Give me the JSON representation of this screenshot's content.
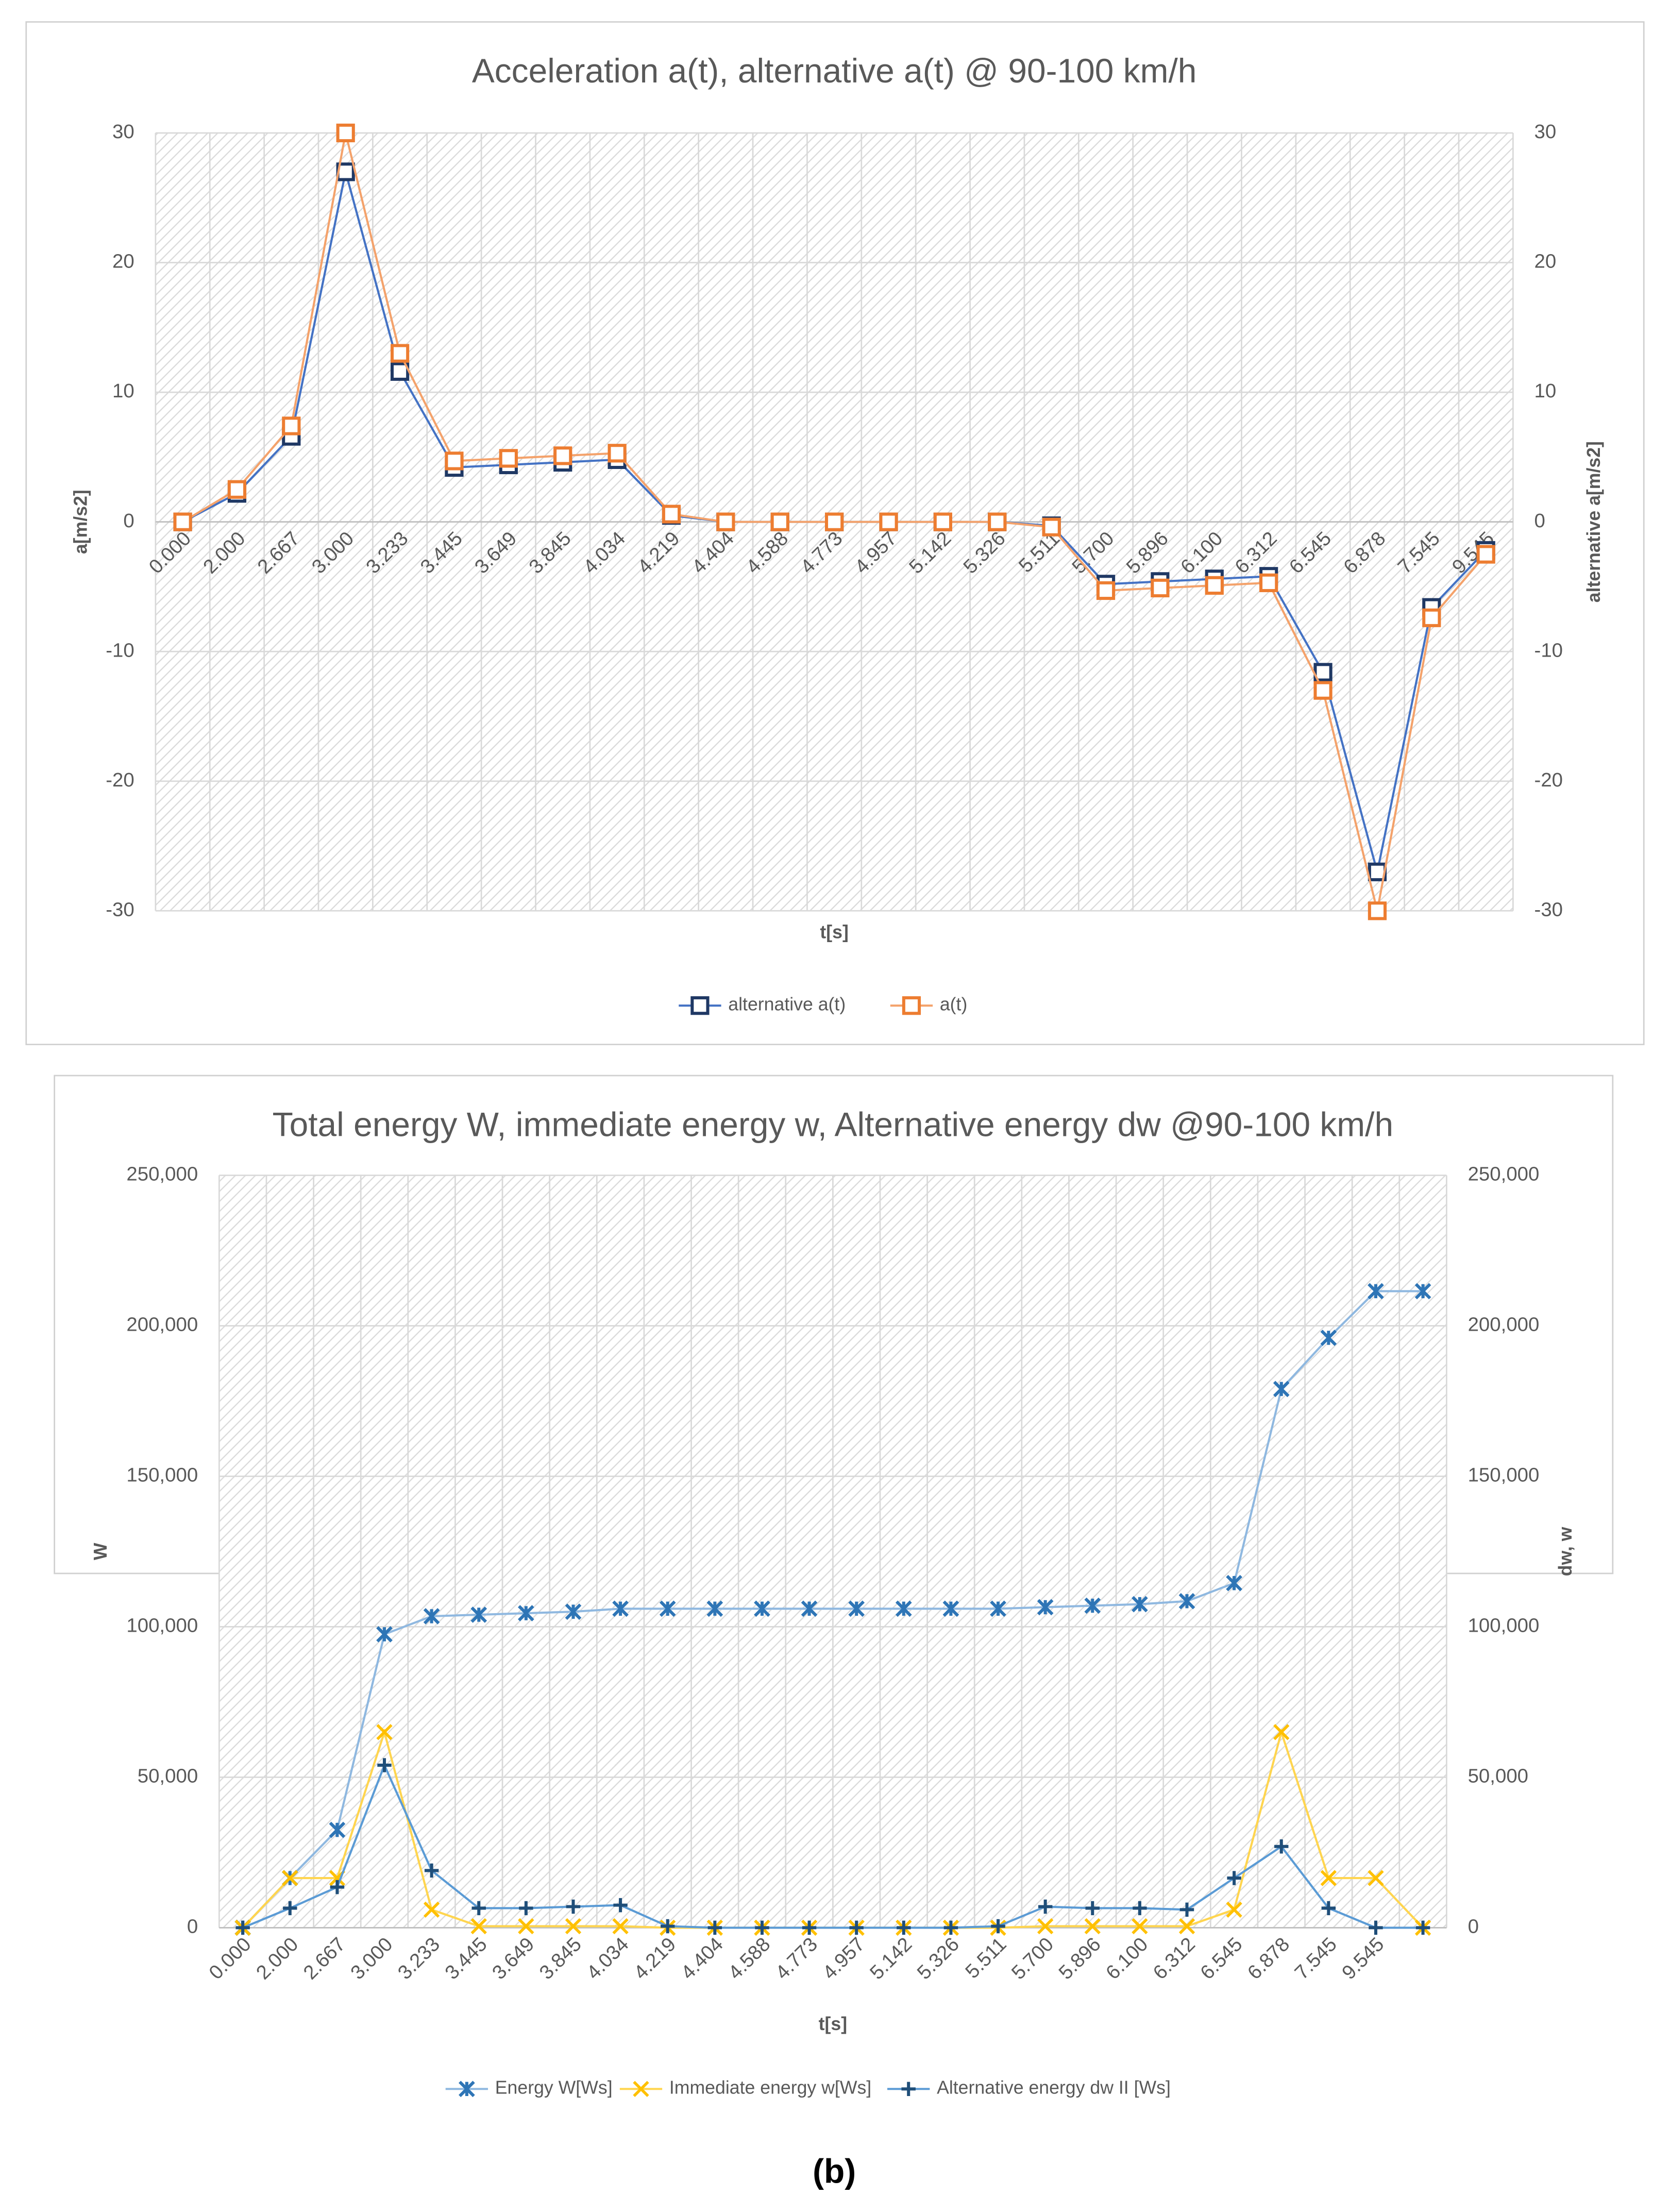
{
  "chart_data": [
    {
      "type": "line",
      "title": "Acceleration a(t), alternative  a(t) @ 90-100 km/h",
      "x_label": "t[s]",
      "y_label": "a[m/s2]",
      "y2_label": "alternative a[m/s2]",
      "categories": [
        "0.000",
        "2.000",
        "2.667",
        "3.000",
        "3.233",
        "3.445",
        "3.649",
        "3.845",
        "4.034",
        "4.219",
        "4.404",
        "4.588",
        "4.773",
        "4.957",
        "5.142",
        "5.326",
        "5.511",
        "5.700",
        "5.896",
        "6.100",
        "6.312",
        "6.545",
        "6.878",
        "7.545",
        "9.545"
      ],
      "series": [
        {
          "name": "alternative a(t)",
          "color": "#1f3864",
          "line_color": "#4472c4",
          "marker": "square",
          "values": [
            0,
            2.2,
            6.6,
            27,
            11.6,
            4.2,
            4.4,
            4.6,
            4.8,
            0.5,
            0,
            0,
            0,
            0,
            0,
            0,
            -0.3,
            -4.8,
            -4.6,
            -4.4,
            -4.2,
            -11.6,
            -27,
            -6.6,
            -2.2
          ]
        },
        {
          "name": "a(t)",
          "color": "#ed7d31",
          "line_color": "#f4a26b",
          "marker": "square",
          "axis": "y2",
          "values": [
            0,
            2.5,
            7.4,
            30,
            13,
            4.7,
            4.9,
            5.1,
            5.3,
            0.6,
            0,
            0,
            0,
            0,
            0,
            0,
            -0.4,
            -5.3,
            -5.1,
            -4.9,
            -4.7,
            -13,
            -30,
            -7.4,
            -2.5
          ]
        }
      ],
      "ylim": [
        -30,
        30
      ],
      "yticks": [
        -30,
        -20,
        -10,
        0,
        10,
        20,
        30
      ],
      "y2lim": [
        -30,
        30
      ],
      "y2ticks": [
        -30,
        -20,
        -10,
        0,
        10,
        20,
        30
      ],
      "grid": true,
      "legend": "bottom"
    },
    {
      "type": "line",
      "title": "Total energy W, immediate energy w, Alternative energy dw @90-100 km/h",
      "x_label": "t[s]",
      "y_label": "W",
      "y2_label": "dw, w",
      "categories": [
        "0.000",
        "2.000",
        "2.667",
        "3.000",
        "3.233",
        "3.445",
        "3.649",
        "3.845",
        "4.034",
        "4.219",
        "4.404",
        "4.588",
        "4.773",
        "4.957",
        "5.142",
        "5.326",
        "5.511",
        "5.700",
        "5.896",
        "6.100",
        "6.312",
        "6.545",
        "6.878",
        "7.545",
        "9.545",
        null
      ],
      "series": [
        {
          "name": "Energy W[Ws]",
          "color": "#2e75b6",
          "line_color": "#8fb8e0",
          "marker": "star",
          "values": [
            0,
            16500,
            32500,
            97500,
            103500,
            104000,
            104500,
            105000,
            106000,
            106000,
            106000,
            106000,
            106000,
            106000,
            106000,
            106000,
            106000,
            106500,
            107000,
            107500,
            108500,
            114500,
            179000,
            196000,
            211500,
            211500
          ]
        },
        {
          "name": "Immediate energy w[Ws]",
          "color": "#ffc000",
          "line_color": "#ffd54f",
          "marker": "x",
          "axis": "y2",
          "values": [
            0,
            16500,
            16500,
            65000,
            6000,
            500,
            500,
            500,
            500,
            0,
            0,
            0,
            0,
            0,
            0,
            0,
            0,
            500,
            500,
            500,
            500,
            6000,
            65000,
            16500,
            16500,
            0
          ]
        },
        {
          "name": "Alternative energy dw II [Ws]",
          "color": "#1f4e79",
          "line_color": "#5b9bd5",
          "marker": "plus",
          "axis": "y2",
          "values": [
            0,
            6500,
            13500,
            54000,
            19000,
            6500,
            6500,
            7000,
            7500,
            500,
            0,
            0,
            0,
            0,
            0,
            0,
            500,
            7000,
            6500,
            6500,
            6000,
            16500,
            27000,
            6500,
            0,
            0
          ]
        }
      ],
      "ylim": [
        0,
        250000
      ],
      "yticks": [
        0,
        {
          "value": 50000,
          "label": "50,000"
        },
        {
          "value": 100000,
          "label": "100,000"
        },
        {
          "value": 150000,
          "label": "150,000"
        },
        {
          "value": 200000,
          "label": "200,000"
        },
        {
          "value": 250000,
          "label": "250,000"
        }
      ],
      "y2lim": [
        0,
        250000
      ],
      "y2ticks": [
        0,
        {
          "value": 50000,
          "label": "50,000"
        },
        {
          "value": 100000,
          "label": "100,000"
        },
        {
          "value": 150000,
          "label": "150,000"
        },
        {
          "value": 200000,
          "label": "200,000"
        },
        {
          "value": 250000,
          "label": "250,000"
        }
      ],
      "grid": true,
      "legend": "bottom"
    }
  ],
  "caption": "(b)"
}
